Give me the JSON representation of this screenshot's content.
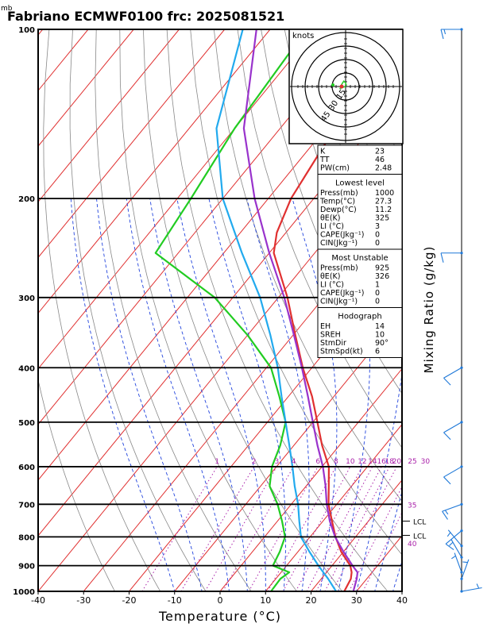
{
  "chart_data": {
    "type": "line",
    "title": "Fabriano ECMWF0100 frc: 2025081521",
    "pressure_unit": "mb",
    "xlabel": "Temperature (°C)",
    "ylabel_right": "Mixing Ratio (g/kg)",
    "xlim": [
      -40,
      40
    ],
    "ylim": [
      1000,
      100
    ],
    "y_log_scale": true,
    "x_ticks": [
      "-40",
      "-30",
      "-20",
      "-10",
      "0",
      "10",
      "20",
      "30",
      "40"
    ],
    "pressure_levels": [
      {
        "p": 100,
        "label": "100"
      },
      {
        "p": 200,
        "label": "200"
      },
      {
        "p": 300,
        "label": "300"
      },
      {
        "p": 400,
        "label": "400"
      },
      {
        "p": 500,
        "label": "500"
      },
      {
        "p": 600,
        "label": "600"
      },
      {
        "p": 700,
        "label": "700"
      },
      {
        "p": 800,
        "label": "800"
      },
      {
        "p": 900,
        "label": "900"
      },
      {
        "p": 1000,
        "label": "1000"
      }
    ],
    "skew_deg_per_decade": 101,
    "series": [
      {
        "key": "temperature",
        "color": "#e03030",
        "points": [
          [
            1000,
            27.3
          ],
          [
            950,
            26.5
          ],
          [
            925,
            25.5
          ],
          [
            900,
            24
          ],
          [
            850,
            19.5
          ],
          [
            800,
            15.6
          ],
          [
            750,
            12
          ],
          [
            700,
            8.2
          ],
          [
            650,
            5
          ],
          [
            600,
            1.5
          ],
          [
            550,
            -3.8
          ],
          [
            500,
            -9
          ],
          [
            450,
            -14.8
          ],
          [
            400,
            -22
          ],
          [
            350,
            -29.5
          ],
          [
            300,
            -38
          ],
          [
            250,
            -49
          ],
          [
            230,
            -52
          ],
          [
            200,
            -55
          ],
          [
            150,
            -58
          ],
          [
            100,
            -62
          ]
        ]
      },
      {
        "key": "dewpoint",
        "color": "#22cc22",
        "points": [
          [
            1000,
            11.2
          ],
          [
            950,
            11
          ],
          [
            925,
            11.8
          ],
          [
            900,
            7
          ],
          [
            850,
            6
          ],
          [
            800,
            4.5
          ],
          [
            750,
            1
          ],
          [
            700,
            -3
          ],
          [
            650,
            -8
          ],
          [
            600,
            -11
          ],
          [
            550,
            -13
          ],
          [
            500,
            -16
          ],
          [
            450,
            -22
          ],
          [
            400,
            -29
          ],
          [
            350,
            -40
          ],
          [
            300,
            -54
          ],
          [
            250,
            -75
          ],
          [
            200,
            -77
          ],
          [
            150,
            -80
          ],
          [
            100,
            -82
          ]
        ]
      },
      {
        "key": "parcel",
        "color": "#22aaee",
        "points": [
          [
            1000,
            25.5
          ],
          [
            950,
            21.5
          ],
          [
            900,
            17
          ],
          [
            850,
            12.5
          ],
          [
            800,
            8
          ],
          [
            750,
            4.8
          ],
          [
            700,
            1.5
          ],
          [
            650,
            -2.5
          ],
          [
            600,
            -6.5
          ],
          [
            550,
            -11
          ],
          [
            500,
            -16
          ],
          [
            450,
            -21.5
          ],
          [
            400,
            -27.5
          ],
          [
            350,
            -35
          ],
          [
            300,
            -44
          ],
          [
            250,
            -56
          ],
          [
            200,
            -70
          ],
          [
            150,
            -84
          ],
          [
            100,
            -96
          ]
        ]
      },
      {
        "key": "virtual_temperature",
        "color": "#9933cc",
        "points": [
          [
            1000,
            29.3
          ],
          [
            950,
            27.8
          ],
          [
            925,
            26.8
          ],
          [
            900,
            24.5
          ],
          [
            850,
            20
          ],
          [
            800,
            15.5
          ],
          [
            750,
            11.5
          ],
          [
            700,
            7.8
          ],
          [
            650,
            4.3
          ],
          [
            600,
            0.2
          ],
          [
            550,
            -4.8
          ],
          [
            500,
            -10
          ],
          [
            450,
            -15.7
          ],
          [
            400,
            -22.2
          ],
          [
            350,
            -29.8
          ],
          [
            300,
            -38.7
          ],
          [
            250,
            -50
          ],
          [
            200,
            -63
          ],
          [
            150,
            -78
          ],
          [
            100,
            -93
          ]
        ]
      }
    ],
    "dry_adiabats_theta_K": [
      250,
      260,
      270,
      280,
      290,
      300,
      310,
      320,
      330,
      340,
      350,
      360,
      370,
      380,
      390,
      400,
      410,
      420,
      430,
      440,
      450,
      460,
      470
    ],
    "moist_adiabats_theta_w_C": [
      -10,
      -4,
      2,
      6,
      10,
      14,
      18,
      22,
      26,
      30,
      34,
      38
    ],
    "mixing_ratio_lines": [
      {
        "w": 1,
        "label": "1"
      },
      {
        "w": 2,
        "label": "2"
      },
      {
        "w": 3,
        "label": "3"
      },
      {
        "w": 4,
        "label": "4"
      },
      {
        "w": 6,
        "label": "6"
      },
      {
        "w": 8,
        "label": "8"
      },
      {
        "w": 10,
        "label": "10"
      },
      {
        "w": 12,
        "label": "12"
      },
      {
        "w": 14,
        "label": "14"
      },
      {
        "w": 16,
        "label": "16"
      },
      {
        "w": 18,
        "label": "18"
      },
      {
        "w": 20,
        "label": "20"
      },
      {
        "w": 25,
        "label": "25"
      },
      {
        "w": 30,
        "label": "30"
      }
    ],
    "theta_e_labels": [
      {
        "p": 700,
        "label": "35"
      },
      {
        "p": 820,
        "label": "40"
      }
    ],
    "lcl_markers": [
      {
        "p": 750,
        "label": "LCL"
      },
      {
        "p": 795,
        "label": "LCL"
      }
    ],
    "wind_barbs": [
      {
        "p": 100,
        "spd": 15,
        "dir": 270
      },
      {
        "p": 250,
        "spd": 10,
        "dir": 270
      },
      {
        "p": 400,
        "spd": 10,
        "dir": 240
      },
      {
        "p": 500,
        "spd": 10,
        "dir": 240
      },
      {
        "p": 600,
        "spd": 10,
        "dir": 240
      },
      {
        "p": 700,
        "spd": 15,
        "dir": 250
      },
      {
        "p": 780,
        "spd": 10,
        "dir": 230
      },
      {
        "p": 830,
        "spd": 5,
        "dir": 320
      },
      {
        "p": 870,
        "spd": 5,
        "dir": 330
      },
      {
        "p": 925,
        "spd": 5,
        "dir": 340
      },
      {
        "p": 950,
        "spd": 5,
        "dir": 20
      },
      {
        "p": 1000,
        "spd": 5,
        "dir": 80
      }
    ],
    "hodograph": {
      "unit_label": "knots",
      "ring_labels": [
        "15",
        "30",
        "45"
      ],
      "points": [
        [
          0,
          0
        ],
        [
          -2,
          0.5
        ],
        [
          -4,
          1.5
        ],
        [
          -6,
          2
        ],
        [
          -4,
          -3
        ],
        [
          -2,
          -6
        ],
        [
          0,
          -4
        ],
        [
          1,
          -1
        ]
      ]
    },
    "indices": [
      {
        "rows": [
          [
            "K",
            "23"
          ],
          [
            "TT",
            "46"
          ],
          [
            "PW(cm)",
            "2.48"
          ]
        ]
      },
      {
        "header": "Lowest level",
        "rows": [
          [
            "Press(mb)",
            "1000"
          ],
          [
            "Temp(°C)",
            "27.3"
          ],
          [
            "Dewp(°C)",
            "11.2"
          ],
          [
            "θE(K)",
            "325"
          ],
          [
            "LI (°C)",
            "3"
          ],
          [
            "CAPE(Jkg⁻¹)",
            "0"
          ],
          [
            "CIN(Jkg⁻¹)",
            "0"
          ]
        ]
      },
      {
        "header": "Most Unstable",
        "rows": [
          [
            "Press(mb)",
            "925"
          ],
          [
            "θE(K)",
            "326"
          ],
          [
            "LI (°C)",
            "1"
          ],
          [
            "CAPE(Jkg⁻¹)",
            "0"
          ],
          [
            "CIN(Jkg⁻¹)",
            "0"
          ]
        ]
      },
      {
        "header": "Hodograph",
        "rows": [
          [
            "EH",
            "14"
          ],
          [
            "SREH",
            "10"
          ],
          [
            "StmDir",
            "90°"
          ],
          [
            "StmSpd(kt)",
            "6"
          ]
        ]
      }
    ],
    "colors": {
      "isotherm": "#e03030",
      "dry_adiabat": "#888888",
      "moist_adiabat": "#2244dd",
      "mixing_ratio": "#aa22aa",
      "wind": "#1e78d8",
      "frame": "#000000"
    },
    "grid": true
  }
}
